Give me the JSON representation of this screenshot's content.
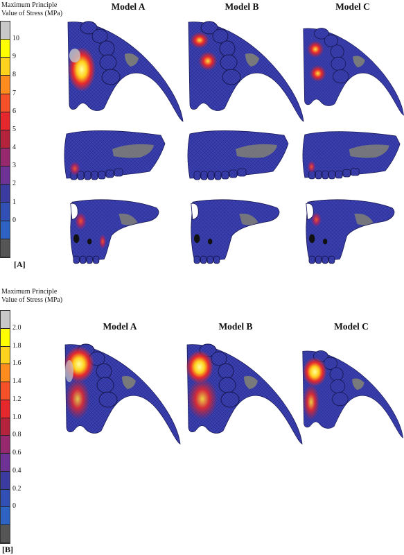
{
  "figure_A": {
    "legend_title": [
      "Maximum Principle",
      "Value of Stress (MPa)"
    ],
    "ticks": [
      "10",
      "9",
      "8",
      "7",
      "6",
      "5",
      "4",
      "3",
      "2",
      "1",
      "0"
    ],
    "colors": [
      "#c8c8c8",
      "#ffff00",
      "#ffd21e",
      "#ff8c1e",
      "#f55028",
      "#e6282d",
      "#b4233c",
      "#96286e",
      "#6e3296",
      "#3c3ca0",
      "#3250b4",
      "#2d64c3",
      "#555555"
    ],
    "models": [
      "Model A",
      "Model B",
      "Model C"
    ],
    "panel_label": "[A]"
  },
  "figure_B": {
    "legend_title": [
      "Maximum Principle",
      "Value of Stress (MPa)"
    ],
    "ticks": [
      "2.0",
      "1.8",
      "1.6",
      "1.4",
      "1.2",
      "1.0",
      "0.8",
      "0.6",
      "0.4",
      "0.2",
      "0"
    ],
    "colors": [
      "#c8c8c8",
      "#ffff00",
      "#ffd21e",
      "#ff8c1e",
      "#f55028",
      "#e6282d",
      "#b4233c",
      "#96286e",
      "#6e3296",
      "#3c3ca0",
      "#3250b4",
      "#2d64c3",
      "#555555"
    ],
    "models": [
      "Model A",
      "Model B",
      "Model C"
    ],
    "panel_label": "[B]"
  },
  "palette": {
    "mesh_blue": "#3a3fb0",
    "mesh_edge": "#1c1c5a",
    "stress_red": "#e02a28",
    "stress_yellow": "#ffe23a",
    "gray_patch": "#8a8a70"
  }
}
